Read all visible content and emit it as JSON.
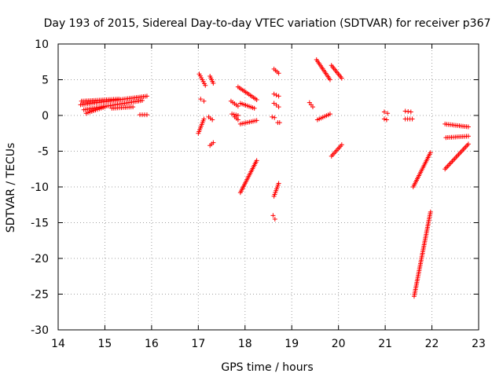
{
  "chart_data": {
    "type": "scatter",
    "title": "Day 193 of 2015, Sidereal Day-to-day VTEC variation (SDTVAR) for receiver p367",
    "xlabel": "GPS time / hours",
    "ylabel": "SDTVAR / TECUs",
    "xlim": [
      14,
      23
    ],
    "ylim": [
      -30,
      10
    ],
    "x_ticks": [
      "14",
      "15",
      "16",
      "17",
      "18",
      "19",
      "20",
      "21",
      "22",
      "23"
    ],
    "y_ticks": [
      "10",
      "5",
      "0",
      "-5",
      "-10",
      "-15",
      "-20",
      "-25",
      "-30"
    ],
    "grid": true,
    "marker": "plus",
    "color": "#ff0000",
    "segments": [
      {
        "x0": 14.48,
        "x1": 15.9,
        "y0": 1.5,
        "y1": 2.7
      },
      {
        "x0": 14.5,
        "x1": 15.3,
        "y0": 2.0,
        "y1": 2.3
      },
      {
        "x0": 14.55,
        "x1": 15.8,
        "y0": 0.8,
        "y1": 2.1
      },
      {
        "x0": 14.6,
        "x1": 15.0,
        "y0": 0.3,
        "y1": 1.2
      },
      {
        "x0": 15.15,
        "x1": 15.6,
        "y0": 1.0,
        "y1": 1.2
      },
      {
        "x0": 15.75,
        "x1": 15.9,
        "y0": 0.1,
        "y1": 0.1
      },
      {
        "x0": 17.02,
        "x1": 17.15,
        "y0": 5.8,
        "y1": 4.2
      },
      {
        "x0": 17.05,
        "x1": 17.12,
        "y0": 2.3,
        "y1": 2.0
      },
      {
        "x0": 17.0,
        "x1": 17.12,
        "y0": -2.5,
        "y1": -0.5
      },
      {
        "x0": 17.25,
        "x1": 17.32,
        "y0": 5.5,
        "y1": 4.5
      },
      {
        "x0": 17.22,
        "x1": 17.3,
        "y0": -0.2,
        "y1": -0.6
      },
      {
        "x0": 17.25,
        "x1": 17.32,
        "y0": -4.2,
        "y1": -3.8
      },
      {
        "x0": 17.7,
        "x1": 17.85,
        "y0": 2.0,
        "y1": 1.3
      },
      {
        "x0": 17.72,
        "x1": 17.85,
        "y0": 0.2,
        "y1": 0.0
      },
      {
        "x0": 17.78,
        "x1": 17.85,
        "y0": -0.2,
        "y1": -0.6
      },
      {
        "x0": 17.85,
        "x1": 18.25,
        "y0": 4.0,
        "y1": 2.2
      },
      {
        "x0": 17.9,
        "x1": 18.2,
        "y0": 1.7,
        "y1": 1.0
      },
      {
        "x0": 17.9,
        "x1": 18.25,
        "y0": -1.2,
        "y1": -0.7
      },
      {
        "x0": 17.9,
        "x1": 18.25,
        "y0": -10.8,
        "y1": -6.3
      },
      {
        "x0": 18.58,
        "x1": 18.63,
        "y0": -0.2,
        "y1": -0.3
      },
      {
        "x0": 18.6,
        "x1": 18.64,
        "y0": -14.0,
        "y1": -14.5
      },
      {
        "x0": 18.62,
        "x1": 18.72,
        "y0": 6.5,
        "y1": 5.9
      },
      {
        "x0": 18.62,
        "x1": 18.72,
        "y0": 3.0,
        "y1": 2.7
      },
      {
        "x0": 18.62,
        "x1": 18.72,
        "y0": 1.7,
        "y1": 1.2
      },
      {
        "x0": 18.62,
        "x1": 18.72,
        "y0": -11.3,
        "y1": -9.5
      },
      {
        "x0": 18.7,
        "x1": 18.74,
        "y0": -1.0,
        "y1": -1.0
      },
      {
        "x0": 19.38,
        "x1": 19.45,
        "y0": 1.8,
        "y1": 1.2
      },
      {
        "x0": 19.53,
        "x1": 19.82,
        "y0": 7.8,
        "y1": 5.0
      },
      {
        "x0": 19.55,
        "x1": 19.82,
        "y0": -0.6,
        "y1": 0.2
      },
      {
        "x0": 19.85,
        "x1": 20.07,
        "y0": 7.0,
        "y1": 5.2
      },
      {
        "x0": 19.85,
        "x1": 20.07,
        "y0": -5.7,
        "y1": -4.1
      },
      {
        "x0": 20.98,
        "x1": 21.05,
        "y0": 0.5,
        "y1": 0.3
      },
      {
        "x0": 20.98,
        "x1": 21.03,
        "y0": -0.5,
        "y1": -0.6
      },
      {
        "x0": 21.43,
        "x1": 21.55,
        "y0": 0.6,
        "y1": 0.5
      },
      {
        "x0": 21.43,
        "x1": 21.58,
        "y0": -0.5,
        "y1": -0.5
      },
      {
        "x0": 21.6,
        "x1": 21.97,
        "y0": -10.0,
        "y1": -5.2
      },
      {
        "x0": 21.62,
        "x1": 21.97,
        "y0": -25.3,
        "y1": -13.5
      },
      {
        "x0": 22.28,
        "x1": 22.78,
        "y0": -1.2,
        "y1": -1.6
      },
      {
        "x0": 22.3,
        "x1": 22.78,
        "y0": -3.1,
        "y1": -2.9
      },
      {
        "x0": 22.28,
        "x1": 22.78,
        "y0": -7.5,
        "y1": -4.0
      }
    ]
  }
}
